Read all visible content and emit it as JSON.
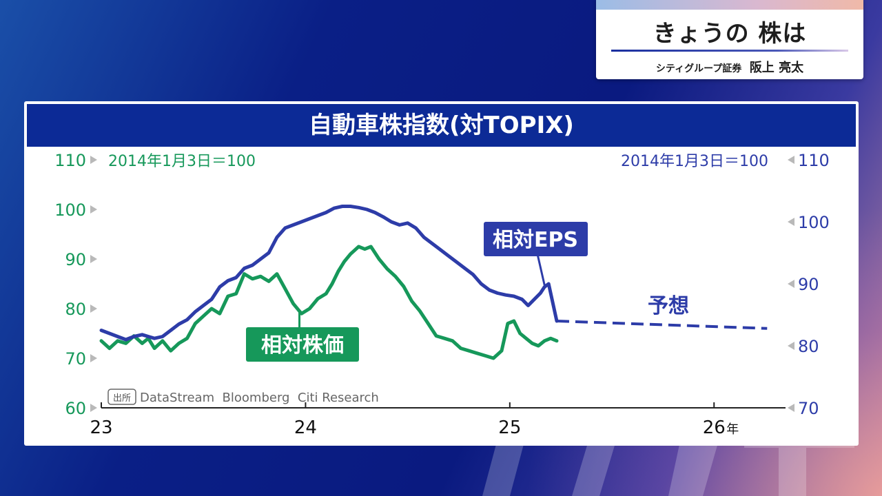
{
  "title_card": {
    "show_title": "きょうの 株は",
    "guest_company": "シティグループ証券",
    "guest_name": "阪上 亮太"
  },
  "chart_data": {
    "type": "line",
    "title": "自動車株指数(対TOPIX)",
    "left_axis": {
      "label": "2014年1月3日＝100",
      "ylim": [
        60,
        110
      ],
      "ticks": [
        60,
        70,
        80,
        90,
        100,
        110
      ],
      "color": "#16985a"
    },
    "right_axis": {
      "label": "2014年1月3日＝100",
      "ylim": [
        70,
        110
      ],
      "ticks": [
        70,
        80,
        90,
        100,
        110
      ],
      "color": "#2d3ca8"
    },
    "x_axis": {
      "range": [
        2023.0,
        2026.35
      ],
      "ticks": [
        {
          "x": 2023,
          "label": "23"
        },
        {
          "x": 2024,
          "label": "24"
        },
        {
          "x": 2025,
          "label": "25"
        },
        {
          "x": 2026,
          "label": "26"
        }
      ],
      "unit": "年"
    },
    "source_tag": "出所",
    "source_text": "DataStream  Bloomberg  Citi Research",
    "series": [
      {
        "name": "相対株価",
        "axis": "left",
        "color": "#16985a",
        "points": [
          [
            2023.0,
            73.5
          ],
          [
            2023.04,
            72.0
          ],
          [
            2023.08,
            73.5
          ],
          [
            2023.12,
            73.0
          ],
          [
            2023.16,
            74.5
          ],
          [
            2023.2,
            73.0
          ],
          [
            2023.23,
            74.0
          ],
          [
            2023.26,
            72.0
          ],
          [
            2023.3,
            73.5
          ],
          [
            2023.34,
            71.5
          ],
          [
            2023.38,
            73.0
          ],
          [
            2023.42,
            74.0
          ],
          [
            2023.46,
            77.0
          ],
          [
            2023.5,
            78.5
          ],
          [
            2023.54,
            80.0
          ],
          [
            2023.58,
            79.0
          ],
          [
            2023.62,
            82.5
          ],
          [
            2023.66,
            83.0
          ],
          [
            2023.7,
            87.0
          ],
          [
            2023.74,
            86.0
          ],
          [
            2023.78,
            86.5
          ],
          [
            2023.82,
            85.5
          ],
          [
            2023.86,
            87.0
          ],
          [
            2023.9,
            84.0
          ],
          [
            2023.94,
            81.0
          ],
          [
            2023.98,
            79.0
          ],
          [
            2024.02,
            80.0
          ],
          [
            2024.06,
            82.0
          ],
          [
            2024.1,
            83.0
          ],
          [
            2024.13,
            85.0
          ],
          [
            2024.16,
            87.5
          ],
          [
            2024.19,
            89.5
          ],
          [
            2024.22,
            91.0
          ],
          [
            2024.26,
            92.5
          ],
          [
            2024.29,
            92.0
          ],
          [
            2024.32,
            92.5
          ],
          [
            2024.36,
            90.0
          ],
          [
            2024.4,
            88.0
          ],
          [
            2024.44,
            86.5
          ],
          [
            2024.48,
            84.5
          ],
          [
            2024.52,
            81.5
          ],
          [
            2024.56,
            79.5
          ],
          [
            2024.6,
            77.0
          ],
          [
            2024.64,
            74.5
          ],
          [
            2024.68,
            74.0
          ],
          [
            2024.72,
            73.5
          ],
          [
            2024.76,
            72.0
          ],
          [
            2024.8,
            71.5
          ],
          [
            2024.84,
            71.0
          ],
          [
            2024.88,
            70.5
          ],
          [
            2024.92,
            70.0
          ],
          [
            2024.96,
            71.5
          ],
          [
            2024.99,
            77.0
          ],
          [
            2025.02,
            77.5
          ],
          [
            2025.05,
            75.0
          ],
          [
            2025.08,
            74.0
          ],
          [
            2025.11,
            73.0
          ],
          [
            2025.14,
            72.5
          ],
          [
            2025.17,
            73.5
          ],
          [
            2025.2,
            74.0
          ],
          [
            2025.23,
            73.5
          ]
        ]
      },
      {
        "name": "相対EPS",
        "axis": "right",
        "color": "#2d3ca8",
        "points": [
          [
            2023.0,
            82.5
          ],
          [
            2023.04,
            82.0
          ],
          [
            2023.08,
            81.5
          ],
          [
            2023.12,
            81.0
          ],
          [
            2023.16,
            81.5
          ],
          [
            2023.2,
            81.8
          ],
          [
            2023.23,
            81.5
          ],
          [
            2023.26,
            81.2
          ],
          [
            2023.3,
            81.5
          ],
          [
            2023.34,
            82.5
          ],
          [
            2023.38,
            83.5
          ],
          [
            2023.42,
            84.2
          ],
          [
            2023.46,
            85.5
          ],
          [
            2023.5,
            86.5
          ],
          [
            2023.54,
            87.5
          ],
          [
            2023.58,
            89.5
          ],
          [
            2023.62,
            90.5
          ],
          [
            2023.66,
            91.0
          ],
          [
            2023.7,
            92.5
          ],
          [
            2023.74,
            93.0
          ],
          [
            2023.78,
            94.0
          ],
          [
            2023.82,
            95.0
          ],
          [
            2023.86,
            97.5
          ],
          [
            2023.9,
            99.0
          ],
          [
            2023.94,
            99.5
          ],
          [
            2023.98,
            100.0
          ],
          [
            2024.02,
            100.5
          ],
          [
            2024.06,
            101.0
          ],
          [
            2024.1,
            101.5
          ],
          [
            2024.14,
            102.2
          ],
          [
            2024.18,
            102.5
          ],
          [
            2024.22,
            102.5
          ],
          [
            2024.26,
            102.3
          ],
          [
            2024.3,
            102.0
          ],
          [
            2024.34,
            101.5
          ],
          [
            2024.38,
            100.8
          ],
          [
            2024.42,
            100.0
          ],
          [
            2024.46,
            99.5
          ],
          [
            2024.5,
            99.8
          ],
          [
            2024.54,
            99.0
          ],
          [
            2024.58,
            97.5
          ],
          [
            2024.62,
            96.5
          ],
          [
            2024.66,
            95.5
          ],
          [
            2024.7,
            94.5
          ],
          [
            2024.74,
            93.5
          ],
          [
            2024.78,
            92.5
          ],
          [
            2024.82,
            91.5
          ],
          [
            2024.86,
            90.0
          ],
          [
            2024.9,
            89.0
          ],
          [
            2024.94,
            88.5
          ],
          [
            2024.98,
            88.2
          ],
          [
            2025.02,
            88.0
          ],
          [
            2025.06,
            87.5
          ],
          [
            2025.09,
            86.5
          ],
          [
            2025.12,
            87.5
          ],
          [
            2025.15,
            88.5
          ],
          [
            2025.17,
            89.5
          ],
          [
            2025.19,
            90.0
          ],
          [
            2025.21,
            87.0
          ],
          [
            2025.23,
            84.0
          ]
        ]
      },
      {
        "name": "予想",
        "axis": "right",
        "color": "#2d3ca8",
        "dashed": true,
        "points": [
          [
            2025.23,
            84.0
          ],
          [
            2026.26,
            82.8
          ]
        ]
      }
    ],
    "annotations": [
      {
        "text": "相対株価",
        "series": "相対株価"
      },
      {
        "text": "相対EPS",
        "series": "相対EPS"
      },
      {
        "text": "予想",
        "series": "予想"
      }
    ]
  }
}
